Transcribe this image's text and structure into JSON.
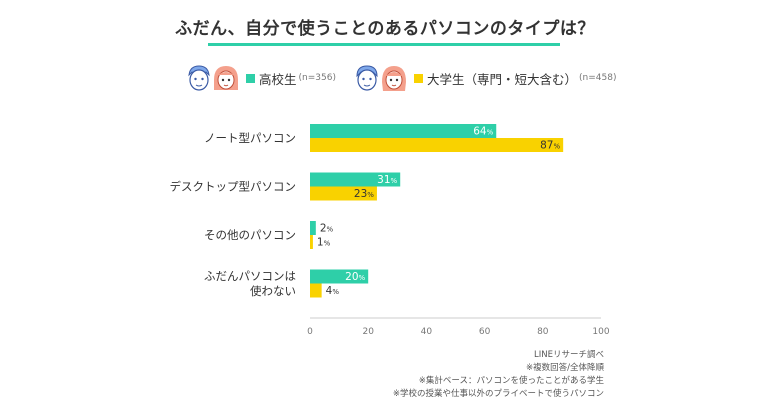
{
  "title": "ふだん、自分で使うことのあるパソコンのタイプは？",
  "colors": {
    "highschool": "#2ecfa8",
    "university": "#f9d200",
    "accent": "#2ecfa8",
    "axis": "#cccccc",
    "text": "#333333"
  },
  "legend": {
    "highschool": {
      "label": "高校生",
      "n": "(n=356)",
      "icons": [
        "boy-face-icon",
        "girl-face-icon"
      ]
    },
    "university": {
      "label": "大学生（専門・短大含む）",
      "n": "(n=458)",
      "icons": [
        "boy-face-icon",
        "girl-face-icon"
      ]
    }
  },
  "chart_data": {
    "type": "bar",
    "orientation": "horizontal",
    "categories": [
      "ノート型パソコン",
      "デスクトップ型パソコン",
      "その他のパソコン",
      "ふだんパソコンは\n使わない"
    ],
    "series": [
      {
        "name": "高校生",
        "values": [
          64,
          31,
          2,
          20
        ],
        "color": "#2ecfa8"
      },
      {
        "name": "大学生（専門・短大含む）",
        "values": [
          87,
          23,
          1,
          4
        ],
        "color": "#f9d200"
      }
    ],
    "xlim": [
      0,
      100
    ],
    "xticks": [
      0,
      20,
      40,
      60,
      80,
      100
    ],
    "value_suffix": "%",
    "grid": false,
    "legend_position": "top"
  },
  "notes": [
    "LINEリサーチ調べ",
    "※複数回答/全体降順",
    "※集計ベース：パソコンを使ったことがある学生",
    "※学校の授業や仕事以外のプライベートで使うパソコン"
  ]
}
